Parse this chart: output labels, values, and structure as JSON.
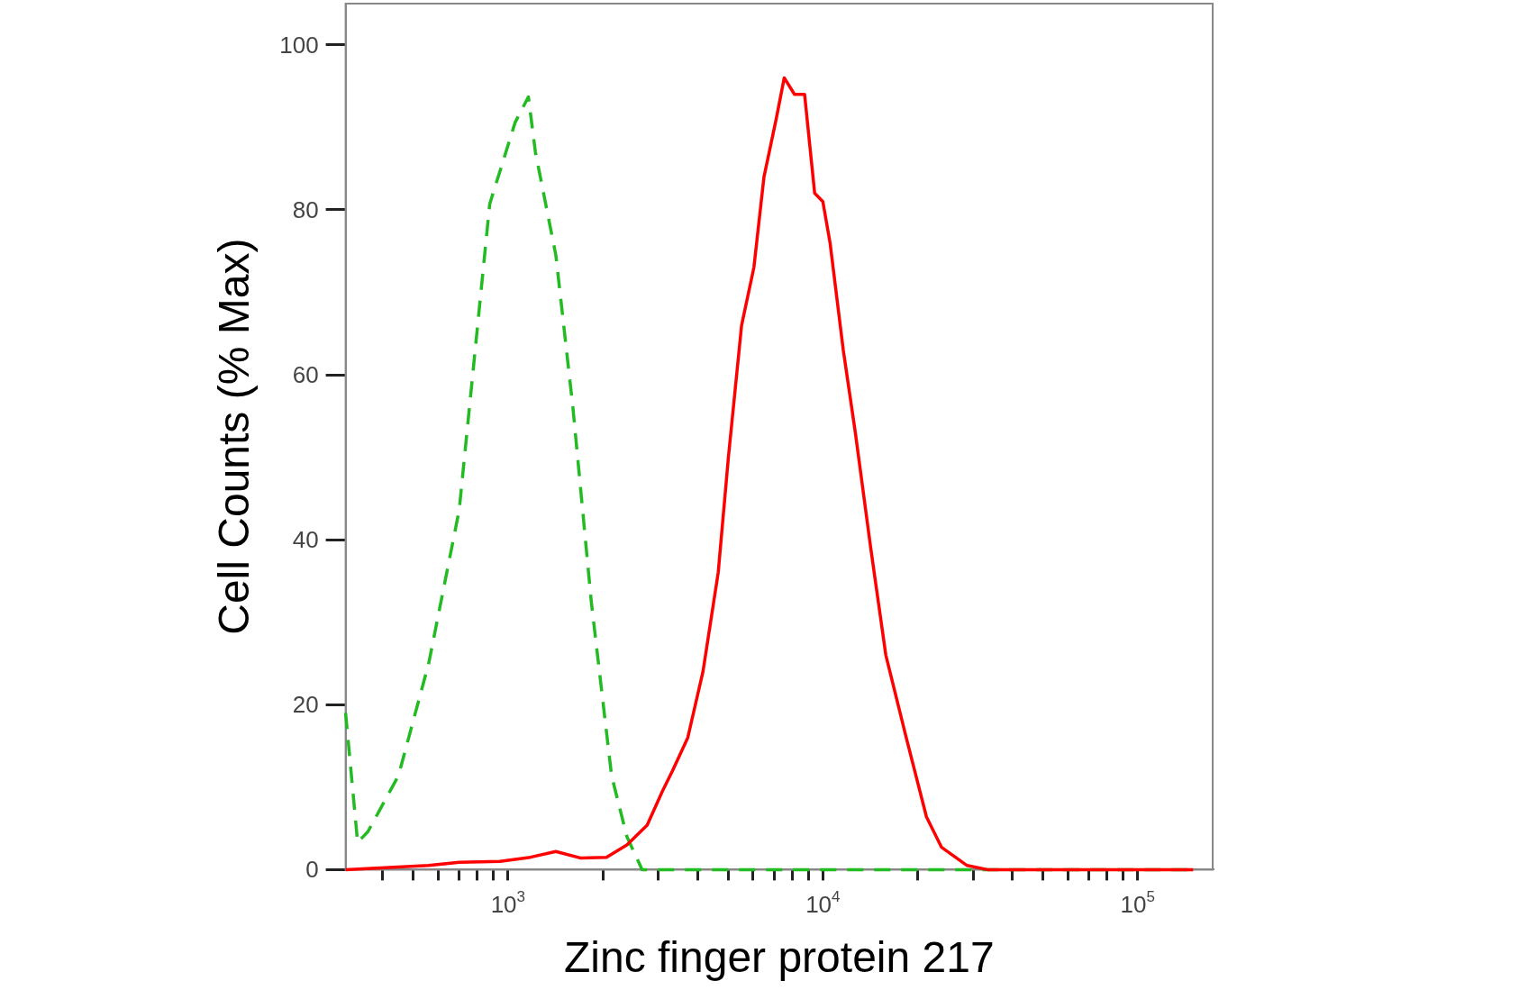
{
  "chart_data": {
    "type": "line",
    "xlabel": "Zinc finger protein 217",
    "ylabel": "Cell Counts (% Max)",
    "log": "x",
    "xlim": [
      305,
      173000
    ],
    "ylim": [
      0,
      105
    ],
    "xticks": [
      {
        "value": 400,
        "label": null
      },
      {
        "value": 500,
        "label": null
      },
      {
        "value": 600,
        "label": null
      },
      {
        "value": 700,
        "label": null
      },
      {
        "value": 800,
        "label": null
      },
      {
        "value": 900,
        "label": null
      },
      {
        "value": 1000,
        "label": "10$^{3}$"
      },
      {
        "value": 2000,
        "label": null
      },
      {
        "value": 3000,
        "label": null
      },
      {
        "value": 4000,
        "label": null
      },
      {
        "value": 5000,
        "label": null
      },
      {
        "value": 6000,
        "label": null
      },
      {
        "value": 7000,
        "label": null
      },
      {
        "value": 8000,
        "label": null
      },
      {
        "value": 9000,
        "label": null
      },
      {
        "value": 10000,
        "label": "10$^{4}$"
      },
      {
        "value": 20000,
        "label": null
      },
      {
        "value": 30000,
        "label": null
      },
      {
        "value": 40000,
        "label": null
      },
      {
        "value": 50000,
        "label": null
      },
      {
        "value": 60000,
        "label": null
      },
      {
        "value": 70000,
        "label": null
      },
      {
        "value": 80000,
        "label": null
      },
      {
        "value": 90000,
        "label": null
      },
      {
        "value": 100000,
        "label": "10$^{5}$"
      }
    ],
    "yticks": [
      0,
      20,
      40,
      60,
      80,
      100
    ],
    "grid": false,
    "legend": false,
    "marker": "none",
    "series": [
      {
        "color": "#ff0000",
        "line_style": "solid",
        "x": [
          305,
          560,
          700,
          943,
          1178,
          1419,
          1706,
          2055,
          2386,
          2767,
          3092,
          3332,
          3724,
          4161,
          4652,
          5012,
          5520,
          6039,
          6502,
          7109,
          7540,
          8128,
          8750,
          9420,
          10000,
          10540,
          11610,
          12680,
          14190,
          15850,
          18400,
          21330,
          23830,
          28710,
          33330,
          150000
        ],
        "values": [
          0,
          0.5,
          0.9,
          1,
          1.5,
          2.2,
          1.4,
          1.5,
          3,
          5.4,
          9.5,
          12,
          16,
          24,
          36,
          50,
          66,
          73,
          84,
          91,
          96,
          94,
          94,
          82,
          81,
          76,
          63,
          53,
          39,
          26,
          16,
          6.4,
          2.7,
          0.5,
          0,
          0
        ]
      },
      {
        "color": "#22bb22",
        "line_style": "dashed",
        "x": [
          305,
          333,
          359,
          449,
          560,
          700,
          875,
          1054,
          1161,
          1222,
          1419,
          1608,
          1840,
          2133,
          2386,
          2667,
          150000
        ],
        "values": [
          19,
          3.3,
          4.6,
          11.4,
          25,
          43.6,
          80.7,
          90.6,
          93.7,
          87,
          74.5,
          56,
          32.4,
          11.4,
          4,
          0,
          0
        ]
      }
    ]
  }
}
